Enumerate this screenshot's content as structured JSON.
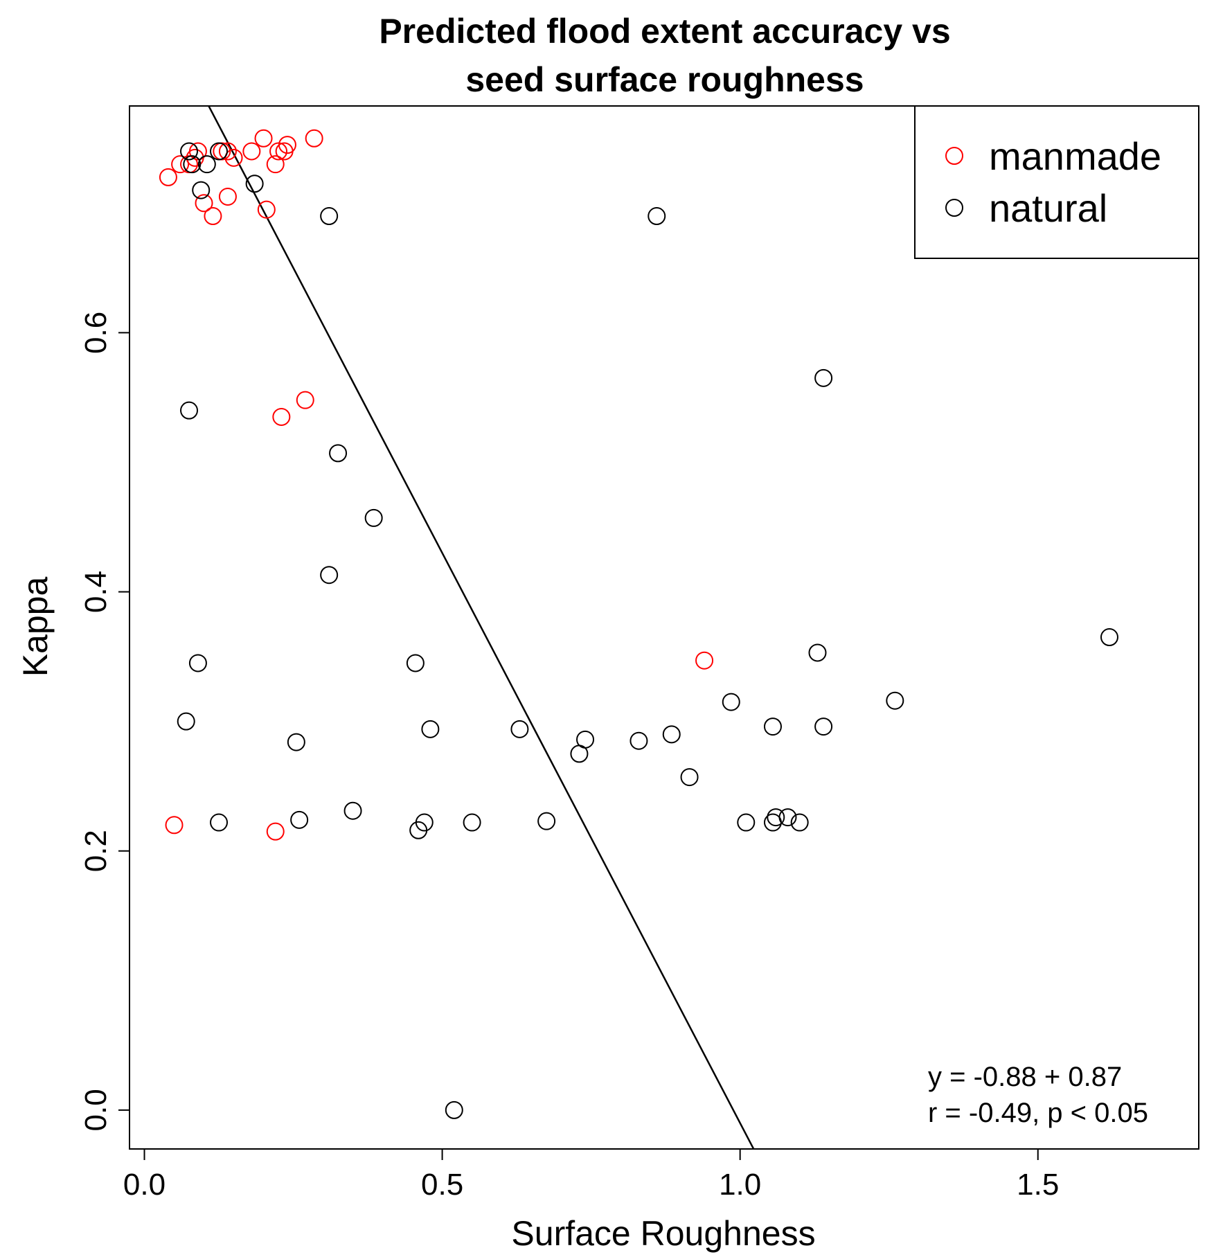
{
  "chart_data": {
    "type": "scatter",
    "title": [
      "Predicted flood extent accuracy vs",
      "seed surface roughness"
    ],
    "xlabel": "Surface Roughness",
    "ylabel": "Kappa",
    "xlim": [
      -0.025,
      1.77
    ],
    "ylim": [
      -0.03,
      0.775
    ],
    "xticks": [
      0.0,
      0.5,
      1.0,
      1.5
    ],
    "xtick_labels": [
      "0.0",
      "0.5",
      "1.0",
      "1.5"
    ],
    "yticks": [
      0.0,
      0.2,
      0.4,
      0.6
    ],
    "ytick_labels": [
      "0.0",
      "0.2",
      "0.4",
      "0.6"
    ],
    "legend": {
      "position": "top-right",
      "entries": [
        {
          "label": "manmade",
          "color": "#ff0000"
        },
        {
          "label": "natural",
          "color": "#000000"
        }
      ]
    },
    "series": [
      {
        "name": "manmade",
        "color": "#ff0000",
        "points": [
          [
            0.04,
            0.72
          ],
          [
            0.06,
            0.73
          ],
          [
            0.075,
            0.73
          ],
          [
            0.085,
            0.735
          ],
          [
            0.09,
            0.74
          ],
          [
            0.1,
            0.7
          ],
          [
            0.115,
            0.69
          ],
          [
            0.13,
            0.74
          ],
          [
            0.14,
            0.74
          ],
          [
            0.14,
            0.705
          ],
          [
            0.15,
            0.735
          ],
          [
            0.18,
            0.74
          ],
          [
            0.2,
            0.75
          ],
          [
            0.205,
            0.695
          ],
          [
            0.22,
            0.73
          ],
          [
            0.225,
            0.74
          ],
          [
            0.235,
            0.74
          ],
          [
            0.24,
            0.745
          ],
          [
            0.285,
            0.75
          ],
          [
            0.23,
            0.535
          ],
          [
            0.27,
            0.548
          ],
          [
            0.05,
            0.22
          ],
          [
            0.22,
            0.215
          ],
          [
            0.94,
            0.347
          ]
        ]
      },
      {
        "name": "natural",
        "color": "#000000",
        "points": [
          [
            0.075,
            0.74
          ],
          [
            0.08,
            0.73
          ],
          [
            0.105,
            0.73
          ],
          [
            0.095,
            0.71
          ],
          [
            0.125,
            0.74
          ],
          [
            0.185,
            0.715
          ],
          [
            0.31,
            0.69
          ],
          [
            0.86,
            0.69
          ],
          [
            0.075,
            0.54
          ],
          [
            1.14,
            0.565
          ],
          [
            0.325,
            0.507
          ],
          [
            0.385,
            0.457
          ],
          [
            0.31,
            0.413
          ],
          [
            0.09,
            0.345
          ],
          [
            0.07,
            0.3
          ],
          [
            0.255,
            0.284
          ],
          [
            0.455,
            0.345
          ],
          [
            0.48,
            0.294
          ],
          [
            0.63,
            0.294
          ],
          [
            0.74,
            0.286
          ],
          [
            0.73,
            0.275
          ],
          [
            0.83,
            0.285
          ],
          [
            0.885,
            0.29
          ],
          [
            0.915,
            0.257
          ],
          [
            0.985,
            0.315
          ],
          [
            1.055,
            0.296
          ],
          [
            1.14,
            0.296
          ],
          [
            1.13,
            0.353
          ],
          [
            1.26,
            0.316
          ],
          [
            1.62,
            0.365
          ],
          [
            0.125,
            0.222
          ],
          [
            0.26,
            0.224
          ],
          [
            0.35,
            0.231
          ],
          [
            0.46,
            0.216
          ],
          [
            0.47,
            0.222
          ],
          [
            0.55,
            0.222
          ],
          [
            0.675,
            0.223
          ],
          [
            1.01,
            0.222
          ],
          [
            1.055,
            0.222
          ],
          [
            1.06,
            0.226
          ],
          [
            1.08,
            0.226
          ],
          [
            1.1,
            0.222
          ],
          [
            0.52,
            0.0
          ]
        ]
      }
    ],
    "regression_line": {
      "intercept": 0.87,
      "slope": -0.88,
      "x_range": [
        0.1,
        1.1
      ]
    },
    "annotations": [
      "y = -0.88 + 0.87",
      "r = -0.49, p < 0.05"
    ]
  }
}
